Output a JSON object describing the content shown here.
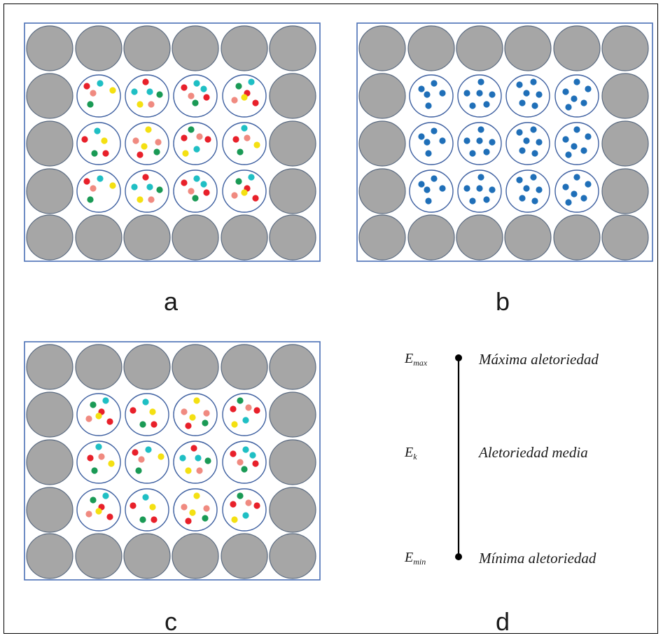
{
  "panels": {
    "a": {
      "label": "a",
      "particles": "mixed"
    },
    "b": {
      "label": "b",
      "particles": "single"
    },
    "c": {
      "label": "c",
      "particles": "mixed"
    },
    "d": {
      "label": "d"
    }
  },
  "colors": {
    "border": "#4a6fb5",
    "gray_fill": "#a6a6a6",
    "gray_stroke": "#5a6a80",
    "cell_stroke": "#3d5fa0",
    "red": "#e8202a",
    "teal": "#1fbfc4",
    "salmon": "#f08a80",
    "yellow": "#f4e012",
    "green": "#1a9a55",
    "blue": "#1f6fb8"
  },
  "scale": {
    "top": {
      "symbol": "E",
      "sub": "max",
      "text": "Máxima aletoriedad"
    },
    "middle": {
      "symbol": "E",
      "sub": "k",
      "text": "Aletoriedad media"
    },
    "bottom": {
      "symbol": "E",
      "sub": "min",
      "text": "Mínima aletoriedad"
    }
  }
}
